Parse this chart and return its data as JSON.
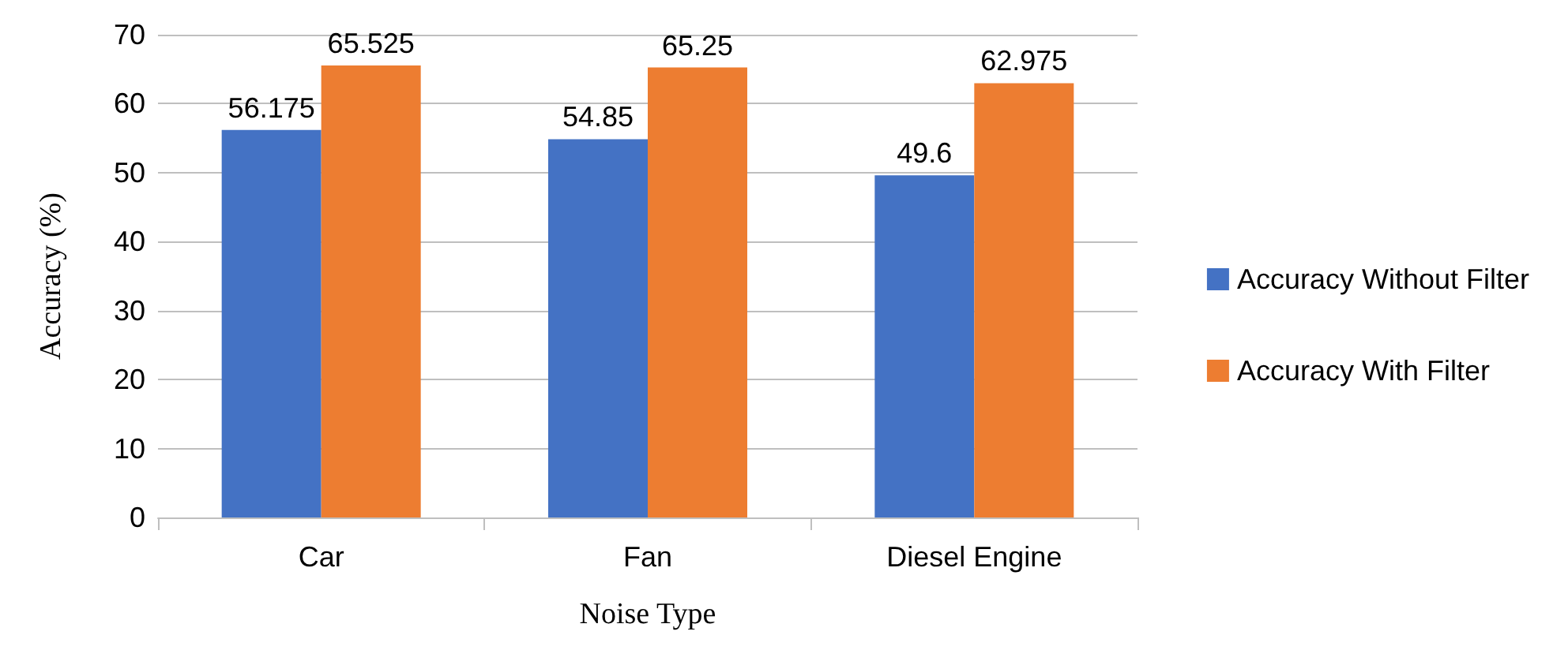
{
  "chart_data": {
    "type": "bar",
    "xlabel": "Noise Type",
    "ylabel": "Accuracy (%)",
    "categories": [
      "Car",
      "Fan",
      "Diesel Engine"
    ],
    "series": [
      {
        "name": "Accuracy Without Filter",
        "color": "#4472c4",
        "values": [
          56.175,
          54.85,
          49.6
        ]
      },
      {
        "name": "Accuracy With Filter",
        "color": "#ed7d31",
        "values": [
          65.525,
          65.25,
          62.975
        ]
      }
    ],
    "ylim": [
      0,
      70
    ],
    "yticks": [
      0,
      10,
      20,
      30,
      40,
      50,
      60,
      70
    ],
    "grid": "y",
    "legend": "right",
    "data_labels": true
  }
}
